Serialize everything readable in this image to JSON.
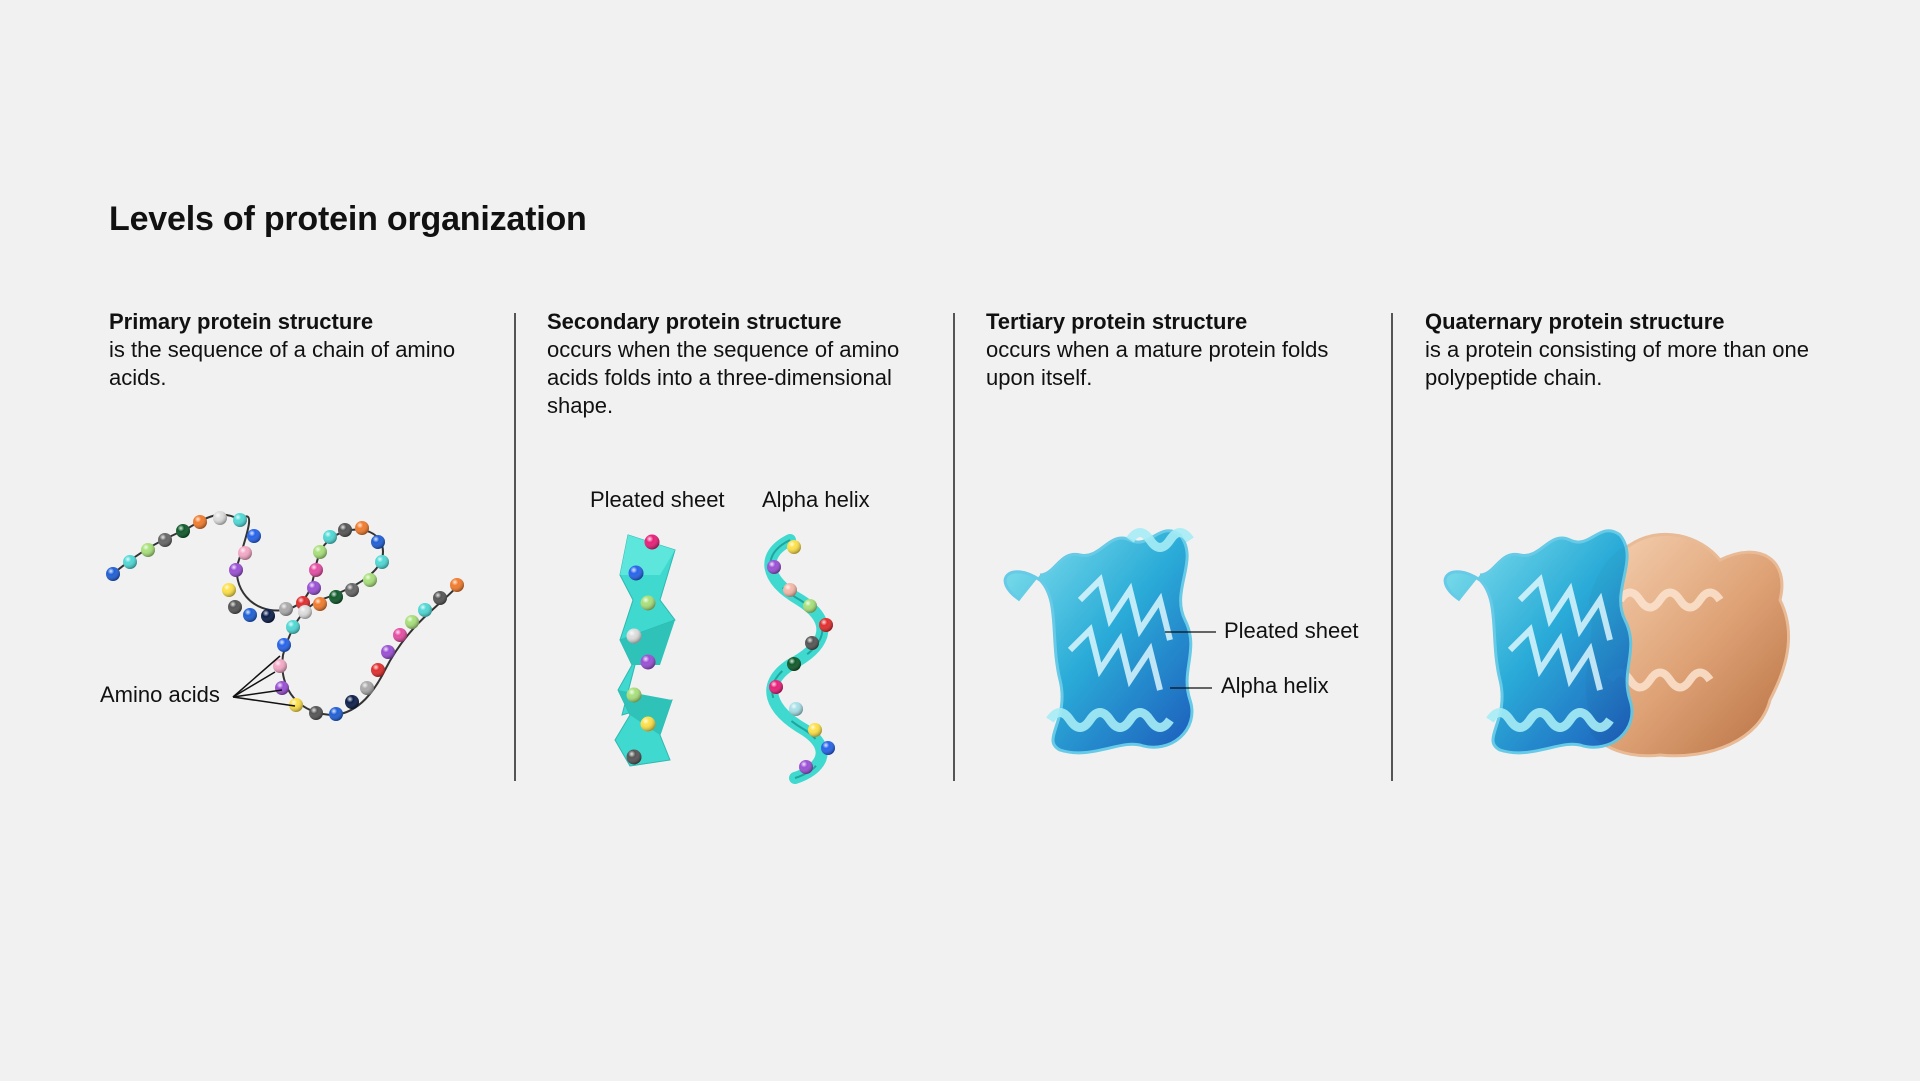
{
  "title": "Levels of protein organization",
  "columns": [
    {
      "heading": "Primary protein structure",
      "description": "is the sequence of a chain of amino acids."
    },
    {
      "heading": "Secondary protein structure",
      "description": "occurs when the sequence of amino acids folds into a three-dimensional shape."
    },
    {
      "heading": "Tertiary protein structure",
      "description": "occurs when a mature protein folds upon itself."
    },
    {
      "heading": "Quaternary protein structure",
      "description": "is a protein consisting of more than one polypeptide chain."
    }
  ],
  "labels": {
    "amino_acids": "Amino acids",
    "pleated_sheet_secondary": "Pleated sheet",
    "alpha_helix_secondary": "Alpha helix",
    "pleated_sheet_tertiary": "Pleated sheet",
    "alpha_helix_tertiary": "Alpha helix"
  },
  "colors": {
    "background": "#f1f1f1",
    "ribbon_teal": "#40d9cf",
    "tertiary_blue": "#1a8fd0",
    "quaternary_orange": "#d99a6a",
    "divider": "#555555"
  }
}
